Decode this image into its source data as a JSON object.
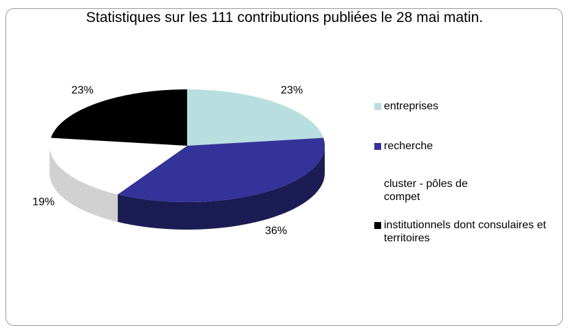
{
  "chart_data": {
    "type": "pie3d",
    "title": "Statistiques sur les 111 contributions publiées le 28 mai matin.",
    "categories": [
      "entreprises",
      "recherche",
      "cluster - pôles de compet",
      "institutionnels dont consulaires et territoires"
    ],
    "values": [
      23,
      36,
      19,
      23
    ],
    "value_labels": [
      "23%",
      "36%",
      "19%",
      "23%"
    ],
    "colors": [
      "#b8dee0",
      "#333399",
      "#ffffff",
      "#000000"
    ],
    "legend": "right"
  }
}
